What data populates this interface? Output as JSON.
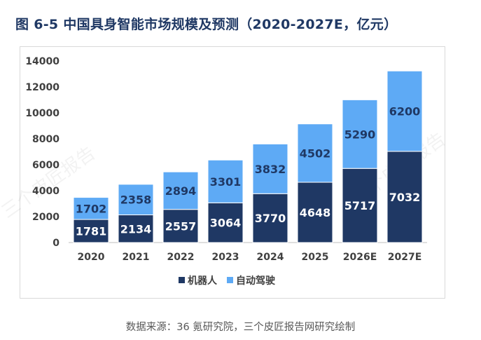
{
  "title": "图 6-5 中国具身智能市场规模及预测（2020-2027E，亿元）",
  "source": "数据来源：36 氪研究院，三个皮匠报告网研究绘制",
  "watermark": "三个皮匠报告",
  "colors": {
    "series1": "#1f3864",
    "series2": "#5eaaf5",
    "title": "#1f3864"
  },
  "chart_data": {
    "type": "bar",
    "stacked": true,
    "title": "中国具身智能市场规模及预测（2020-2027E，亿元）",
    "categories": [
      "2020",
      "2021",
      "2022",
      "2023",
      "2024",
      "2025",
      "2026E",
      "2027E"
    ],
    "series": [
      {
        "name": "机器人",
        "values": [
          1781,
          2134,
          2557,
          3064,
          3770,
          4648,
          5717,
          7032
        ]
      },
      {
        "name": "自动驾驶",
        "values": [
          1702,
          2358,
          2894,
          3301,
          3832,
          4502,
          5290,
          6200
        ]
      }
    ],
    "yticks": [
      0,
      2000,
      4000,
      6000,
      8000,
      10000,
      12000,
      14000
    ],
    "ylim": [
      0,
      14000
    ],
    "xlabel": "",
    "ylabel": "",
    "legend_position": "bottom"
  }
}
